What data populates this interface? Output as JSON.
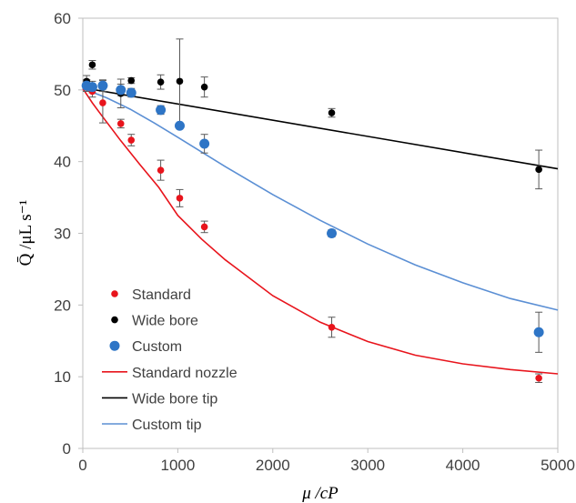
{
  "chart_data": {
    "type": "scatter",
    "xlabel": "μ /cP",
    "ylabel": "Q̄ /μL s⁻¹",
    "xlim": [
      0,
      5000
    ],
    "ylim": [
      0,
      60
    ],
    "x_ticks": [
      "0",
      "1000",
      "2000",
      "3000",
      "4000",
      "5000"
    ],
    "y_ticks": [
      "0",
      "10",
      "20",
      "30",
      "40",
      "50",
      "60"
    ],
    "grid": false,
    "legend_position": "bottom-left",
    "series": [
      {
        "name": "Standard",
        "kind": "points",
        "color": "#e8141c",
        "marker_size": "small",
        "points": [
          {
            "x": 40,
            "y": 50.6,
            "err": 0.8
          },
          {
            "x": 100,
            "y": 49.8,
            "err": 0.8
          },
          {
            "x": 210,
            "y": 48.2,
            "err": 2.8
          },
          {
            "x": 400,
            "y": 45.3,
            "err": 0.6
          },
          {
            "x": 510,
            "y": 43.0,
            "err": 0.8
          },
          {
            "x": 820,
            "y": 38.8,
            "err": 1.4
          },
          {
            "x": 1020,
            "y": 34.9,
            "err": 1.2
          },
          {
            "x": 1280,
            "y": 30.9,
            "err": 0.8
          },
          {
            "x": 2620,
            "y": 16.9,
            "err": 1.4
          },
          {
            "x": 4800,
            "y": 9.8,
            "err": 0.6
          }
        ]
      },
      {
        "name": "Wide bore",
        "kind": "points",
        "color": "#000000",
        "marker_size": "small",
        "points": [
          {
            "x": 40,
            "y": 51.2,
            "err": 0.8
          },
          {
            "x": 100,
            "y": 53.5,
            "err": 0.6
          },
          {
            "x": 210,
            "y": 50.7,
            "err": 0.6
          },
          {
            "x": 400,
            "y": 49.5,
            "err": 2.0
          },
          {
            "x": 510,
            "y": 51.3,
            "err": 0.4
          },
          {
            "x": 820,
            "y": 51.1,
            "err": 1.0
          },
          {
            "x": 1020,
            "y": 51.2,
            "err": 5.9
          },
          {
            "x": 1280,
            "y": 50.4,
            "err": 1.4
          },
          {
            "x": 2620,
            "y": 46.8,
            "err": 0.6
          },
          {
            "x": 4800,
            "y": 38.9,
            "err": 2.7
          }
        ]
      },
      {
        "name": "Custom",
        "kind": "points",
        "color": "#2e75c6",
        "marker_size": "large",
        "points": [
          {
            "x": 40,
            "y": 50.6,
            "err": 0.8
          },
          {
            "x": 100,
            "y": 50.4,
            "err": 0.8
          },
          {
            "x": 210,
            "y": 50.6,
            "err": 0.8
          },
          {
            "x": 400,
            "y": 50.0,
            "err": 0.8
          },
          {
            "x": 510,
            "y": 49.6,
            "err": 0.6
          },
          {
            "x": 820,
            "y": 47.2,
            "err": 0.6
          },
          {
            "x": 1020,
            "y": 45.0,
            "err": 0
          },
          {
            "x": 1280,
            "y": 42.5,
            "err": 1.3
          },
          {
            "x": 2620,
            "y": 30.0,
            "err": 0.5
          },
          {
            "x": 4800,
            "y": 16.2,
            "err": 2.8
          }
        ]
      },
      {
        "name": "Standard nozzle",
        "kind": "line",
        "color": "#e8141c",
        "points": [
          {
            "x": 0,
            "y": 50.2
          },
          {
            "x": 100,
            "y": 48.2
          },
          {
            "x": 200,
            "y": 46.4
          },
          {
            "x": 400,
            "y": 42.9
          },
          {
            "x": 600,
            "y": 39.6
          },
          {
            "x": 800,
            "y": 36.4
          },
          {
            "x": 1000,
            "y": 32.5
          },
          {
            "x": 1250,
            "y": 29.2
          },
          {
            "x": 1500,
            "y": 26.3
          },
          {
            "x": 2000,
            "y": 21.3
          },
          {
            "x": 2500,
            "y": 17.6
          },
          {
            "x": 3000,
            "y": 14.9
          },
          {
            "x": 3500,
            "y": 13.0
          },
          {
            "x": 4000,
            "y": 11.8
          },
          {
            "x": 4500,
            "y": 11.0
          },
          {
            "x": 5000,
            "y": 10.4
          }
        ]
      },
      {
        "name": "Wide bore tip",
        "kind": "line",
        "color": "#000000",
        "points": [
          {
            "x": 0,
            "y": 50.3
          },
          {
            "x": 5000,
            "y": 39.0
          }
        ]
      },
      {
        "name": "Custom tip",
        "kind": "line",
        "color": "#5b8fd4",
        "points": [
          {
            "x": 0,
            "y": 50.2
          },
          {
            "x": 250,
            "y": 48.9
          },
          {
            "x": 500,
            "y": 47.3
          },
          {
            "x": 750,
            "y": 45.4
          },
          {
            "x": 1000,
            "y": 43.4
          },
          {
            "x": 1500,
            "y": 39.3
          },
          {
            "x": 2000,
            "y": 35.4
          },
          {
            "x": 2500,
            "y": 31.8
          },
          {
            "x": 3000,
            "y": 28.5
          },
          {
            "x": 3500,
            "y": 25.6
          },
          {
            "x": 4000,
            "y": 23.1
          },
          {
            "x": 4500,
            "y": 20.9
          },
          {
            "x": 5000,
            "y": 19.3
          }
        ]
      }
    ]
  }
}
